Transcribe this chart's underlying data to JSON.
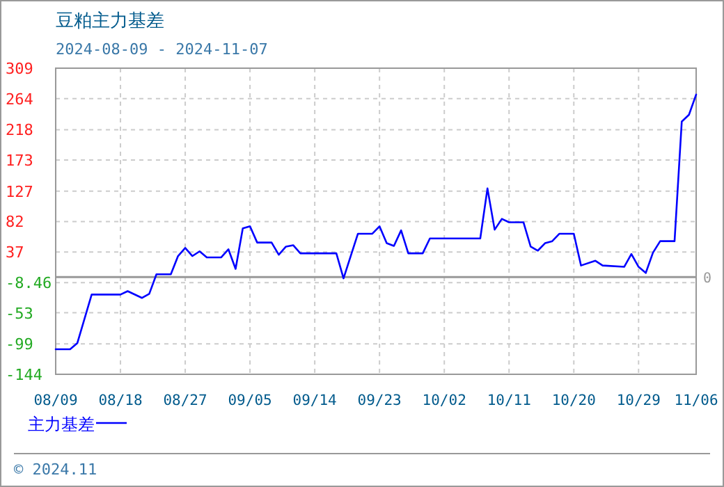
{
  "chart_data": {
    "type": "line",
    "title": "豆粕主力基差",
    "subtitle": "2024-08-09 - 2024-11-07",
    "x": [
      "2024-08-09",
      "2024-08-11",
      "2024-08-12",
      "2024-08-14",
      "2024-08-18",
      "2024-08-19",
      "2024-08-21",
      "2024-08-22",
      "2024-08-23",
      "2024-08-25",
      "2024-08-26",
      "2024-08-27",
      "2024-08-28",
      "2024-08-29",
      "2024-08-30",
      "2024-09-01",
      "2024-09-02",
      "2024-09-03",
      "2024-09-04",
      "2024-09-05",
      "2024-09-06",
      "2024-09-08",
      "2024-09-09",
      "2024-09-10",
      "2024-09-11",
      "2024-09-12",
      "2024-09-17",
      "2024-09-18",
      "2024-09-20",
      "2024-09-22",
      "2024-09-23",
      "2024-09-24",
      "2024-09-25",
      "2024-09-26",
      "2024-09-27",
      "2024-09-29",
      "2024-09-30",
      "2024-10-07",
      "2024-10-08",
      "2024-10-09",
      "2024-10-10",
      "2024-10-11",
      "2024-10-13",
      "2024-10-14",
      "2024-10-15",
      "2024-10-16",
      "2024-10-17",
      "2024-10-18",
      "2024-10-20",
      "2024-10-21",
      "2024-10-23",
      "2024-10-24",
      "2024-10-27",
      "2024-10-28",
      "2024-10-29",
      "2024-10-30",
      "2024-10-31",
      "2024-11-01",
      "2024-11-03",
      "2024-11-04",
      "2024-11-05",
      "2024-11-06"
    ],
    "series": [
      {
        "name": "主力基差",
        "color": "#0000ff",
        "values": [
          -107,
          -107,
          -98,
          -26,
          -26,
          -21,
          -31,
          -25,
          4,
          4,
          31,
          43,
          31,
          38,
          29,
          29,
          41,
          12,
          72,
          75,
          51,
          51,
          33,
          45,
          47,
          35,
          35,
          -2,
          64,
          64,
          75,
          50,
          46,
          69,
          35,
          35,
          57,
          57,
          131,
          70,
          86,
          81,
          81,
          45,
          39,
          50,
          53,
          64,
          64,
          17,
          24,
          17,
          15,
          34,
          15,
          6,
          36,
          53,
          53,
          230,
          240,
          270
        ]
      }
    ],
    "xlim": [
      "2024-08-09",
      "2024-11-06"
    ],
    "xticks": [
      {
        "value": "2024-08-09",
        "label": "08/09"
      },
      {
        "value": "2024-08-18",
        "label": "08/18"
      },
      {
        "value": "2024-08-27",
        "label": "08/27"
      },
      {
        "value": "2024-09-05",
        "label": "09/05"
      },
      {
        "value": "2024-09-14",
        "label": "09/14"
      },
      {
        "value": "2024-09-23",
        "label": "09/23"
      },
      {
        "value": "2024-10-02",
        "label": "10/02"
      },
      {
        "value": "2024-10-11",
        "label": "10/11"
      },
      {
        "value": "2024-10-20",
        "label": "10/20"
      },
      {
        "value": "2024-10-29",
        "label": "10/29"
      },
      {
        "value": "2024-11-06",
        "label": "11/06"
      }
    ],
    "ylim": [
      -144,
      309
    ],
    "yticks": [
      309,
      264,
      218,
      173,
      127,
      82,
      37,
      -8.46,
      -53,
      -99,
      -144
    ],
    "ref_lines": [
      {
        "axis": "y",
        "value": 0,
        "label": "0",
        "color": "#999999"
      }
    ],
    "grid": true,
    "legend": "bottom",
    "line_style": "solid",
    "marker": "none",
    "annotations": [
      "© 2024.11"
    ]
  }
}
